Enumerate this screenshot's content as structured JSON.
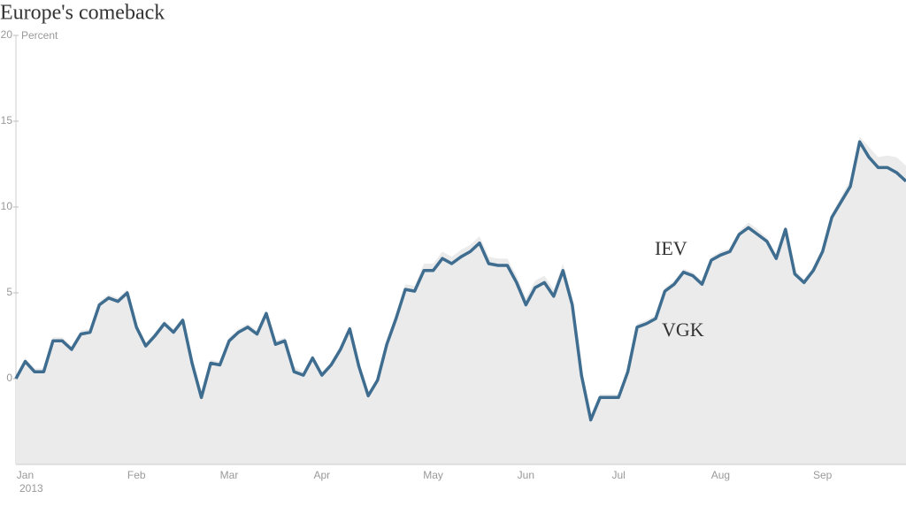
{
  "chart_data": {
    "type": "line",
    "title": "Europe's comeback",
    "y_label": "Percent",
    "year_label": "2013",
    "categories": [
      null,
      "Jan",
      null,
      null,
      null,
      null,
      null,
      null,
      null,
      null,
      null,
      null,
      null,
      "Feb",
      null,
      null,
      null,
      null,
      null,
      null,
      null,
      null,
      null,
      "Mar",
      null,
      null,
      null,
      null,
      null,
      null,
      null,
      null,
      null,
      "Apr",
      null,
      null,
      null,
      null,
      null,
      null,
      null,
      null,
      null,
      null,
      null,
      "May",
      null,
      null,
      null,
      null,
      null,
      null,
      null,
      null,
      null,
      "Jun",
      null,
      null,
      null,
      null,
      null,
      null,
      null,
      null,
      null,
      "Jul",
      null,
      null,
      null,
      null,
      null,
      null,
      null,
      null,
      null,
      null,
      "Aug",
      null,
      null,
      null,
      null,
      null,
      null,
      null,
      null,
      null,
      null,
      "Sep",
      null,
      null,
      null,
      null,
      null,
      null,
      null,
      null,
      null
    ],
    "ylim": [
      -5,
      20
    ],
    "yticks": [
      0,
      5,
      10,
      15,
      20
    ],
    "series": [
      {
        "name": "IEV",
        "color": "#ebebeb",
        "style": "area",
        "values": [
          0,
          1.2,
          0.6,
          0.6,
          2.4,
          2.4,
          1.9,
          2.8,
          2.9,
          4.5,
          4.9,
          4.7,
          5.2,
          3.2,
          2.1,
          2.7,
          3.4,
          2.9,
          3.6,
          1.1,
          -0.9,
          1.1,
          1.0,
          2.4,
          2.9,
          3.2,
          2.8,
          4.0,
          2.2,
          2.4,
          0.7,
          0.4,
          1.4,
          0.4,
          1.0,
          1.9,
          3.1,
          0.9,
          -0.8,
          0.1,
          2.2,
          3.7,
          5.5,
          5.4,
          6.7,
          6.7,
          7.4,
          7.1,
          7.5,
          7.8,
          8.3,
          7.1,
          7.0,
          7.0,
          6.0,
          4.7,
          5.7,
          6.0,
          5.2,
          6.7,
          4.7,
          0.4,
          -2.2,
          -0.9,
          -0.9,
          -0.9,
          0.6,
          3.2,
          3.4,
          3.7,
          5.3,
          5.7,
          6.4,
          6.2,
          5.7,
          7.1,
          7.4,
          7.6,
          8.6,
          9.1,
          8.7,
          8.2,
          7.2,
          8.9,
          6.3,
          5.8,
          6.5,
          7.6,
          9.6,
          10.6,
          11.6,
          14.1,
          13.5,
          12.9,
          13.0,
          12.9,
          12.4
        ]
      },
      {
        "name": "VGK",
        "color": "#3f6d90",
        "style": "line",
        "values": [
          0,
          1.0,
          0.4,
          0.4,
          2.2,
          2.2,
          1.7,
          2.6,
          2.7,
          4.3,
          4.7,
          4.5,
          5.0,
          3.0,
          1.9,
          2.5,
          3.2,
          2.7,
          3.4,
          0.9,
          -1.1,
          0.9,
          0.8,
          2.2,
          2.7,
          3.0,
          2.6,
          3.8,
          2.0,
          2.2,
          0.4,
          0.2,
          1.2,
          0.2,
          0.8,
          1.7,
          2.9,
          0.7,
          -1.0,
          -0.1,
          2.0,
          3.5,
          5.2,
          5.1,
          6.3,
          6.3,
          7.0,
          6.7,
          7.1,
          7.4,
          7.9,
          6.7,
          6.6,
          6.6,
          5.6,
          4.3,
          5.3,
          5.6,
          4.8,
          6.3,
          4.3,
          0.2,
          -2.4,
          -1.1,
          -1.1,
          -1.1,
          0.4,
          3.0,
          3.2,
          3.5,
          5.1,
          5.5,
          6.2,
          6.0,
          5.5,
          6.9,
          7.2,
          7.4,
          8.4,
          8.8,
          8.4,
          8.0,
          7.0,
          8.7,
          6.1,
          5.6,
          6.3,
          7.4,
          9.4,
          10.3,
          11.2,
          13.8,
          12.9,
          12.3,
          12.3,
          12.0,
          11.5
        ]
      }
    ]
  }
}
